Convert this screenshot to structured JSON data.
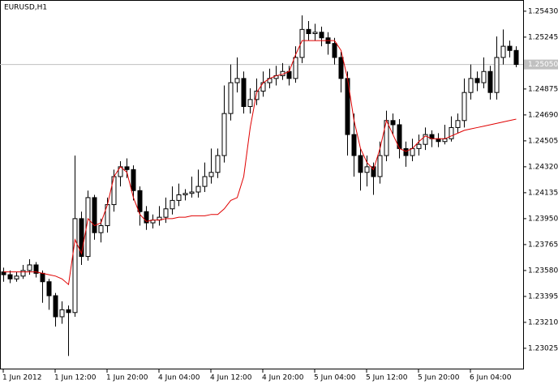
{
  "chart_data": {
    "type": "candlestick",
    "title": "EURUSD,H1",
    "candles": [
      [
        1.2357,
        1.236,
        1.235,
        1.2355
      ],
      [
        1.2355,
        1.2358,
        1.2349,
        1.2352
      ],
      [
        1.2352,
        1.2357,
        1.235,
        1.2354
      ],
      [
        1.2354,
        1.2362,
        1.2352,
        1.2358
      ],
      [
        1.2358,
        1.2366,
        1.2355,
        1.2362
      ],
      [
        1.2362,
        1.2364,
        1.2353,
        1.2356
      ],
      [
        1.2356,
        1.2358,
        1.2335,
        1.235
      ],
      [
        1.235,
        1.2352,
        1.233,
        1.234
      ],
      [
        1.234,
        1.2342,
        1.2318,
        1.2325
      ],
      [
        1.2325,
        1.2336,
        1.232,
        1.233
      ],
      [
        1.233,
        1.2333,
        1.2297,
        1.2328
      ],
      [
        1.2328,
        1.244,
        1.2325,
        1.2395
      ],
      [
        1.2395,
        1.24,
        1.2362,
        1.2368
      ],
      [
        1.2368,
        1.2415,
        1.2365,
        1.241
      ],
      [
        1.241,
        1.2412,
        1.238,
        1.2385
      ],
      [
        1.2385,
        1.2395,
        1.2378,
        1.239
      ],
      [
        1.239,
        1.241,
        1.2385,
        1.2405
      ],
      [
        1.2405,
        1.243,
        1.24,
        1.2425
      ],
      [
        1.2425,
        1.2436,
        1.2418,
        1.2432
      ],
      [
        1.2432,
        1.2438,
        1.2424,
        1.243
      ],
      [
        1.243,
        1.2433,
        1.2408,
        1.2415
      ],
      [
        1.2415,
        1.2418,
        1.239,
        1.24
      ],
      [
        1.24,
        1.2404,
        1.2387,
        1.2392
      ],
      [
        1.2392,
        1.2398,
        1.2388,
        1.2394
      ],
      [
        1.2394,
        1.2404,
        1.239,
        1.2396
      ],
      [
        1.2396,
        1.241,
        1.2392,
        1.2402
      ],
      [
        1.2402,
        1.2418,
        1.2398,
        1.2408
      ],
      [
        1.2408,
        1.242,
        1.2404,
        1.2412
      ],
      [
        1.2412,
        1.2416,
        1.2408,
        1.2413
      ],
      [
        1.2413,
        1.2425,
        1.241,
        1.2414
      ],
      [
        1.2414,
        1.243,
        1.241,
        1.2418
      ],
      [
        1.2418,
        1.2435,
        1.2414,
        1.2425
      ],
      [
        1.2425,
        1.2445,
        1.242,
        1.2428
      ],
      [
        1.2428,
        1.2445,
        1.2424,
        1.244
      ],
      [
        1.244,
        1.249,
        1.2435,
        1.247
      ],
      [
        1.247,
        1.2505,
        1.2465,
        1.2492
      ],
      [
        1.2492,
        1.251,
        1.2485,
        1.2495
      ],
      [
        1.2495,
        1.25,
        1.247,
        1.2475
      ],
      [
        1.2475,
        1.2488,
        1.247,
        1.248
      ],
      [
        1.248,
        1.2495,
        1.2476,
        1.2486
      ],
      [
        1.2486,
        1.25,
        1.2482,
        1.2492
      ],
      [
        1.2492,
        1.2502,
        1.2488,
        1.2495
      ],
      [
        1.2495,
        1.2504,
        1.249,
        1.2497
      ],
      [
        1.2497,
        1.2506,
        1.2494,
        1.25
      ],
      [
        1.25,
        1.2504,
        1.249,
        1.2495
      ],
      [
        1.2495,
        1.2518,
        1.2492,
        1.251
      ],
      [
        1.251,
        1.254,
        1.2506,
        1.253
      ],
      [
        1.253,
        1.2536,
        1.2522,
        1.2527
      ],
      [
        1.2527,
        1.2534,
        1.2522,
        1.2528
      ],
      [
        1.2528,
        1.2532,
        1.2518,
        1.2524
      ],
      [
        1.2524,
        1.2528,
        1.2512,
        1.252
      ],
      [
        1.252,
        1.2524,
        1.2505,
        1.251
      ],
      [
        1.251,
        1.2514,
        1.2485,
        1.2495
      ],
      [
        1.2495,
        1.25,
        1.244,
        1.2455
      ],
      [
        1.2455,
        1.247,
        1.2425,
        1.244
      ],
      [
        1.244,
        1.2445,
        1.2415,
        1.2428
      ],
      [
        1.2428,
        1.244,
        1.2418,
        1.2432
      ],
      [
        1.2432,
        1.2435,
        1.2412,
        1.2425
      ],
      [
        1.2425,
        1.245,
        1.242,
        1.244
      ],
      [
        1.244,
        1.2472,
        1.2436,
        1.2465
      ],
      [
        1.2465,
        1.247,
        1.2455,
        1.2462
      ],
      [
        1.2462,
        1.2466,
        1.2438,
        1.2445
      ],
      [
        1.2445,
        1.245,
        1.2432,
        1.244
      ],
      [
        1.244,
        1.2452,
        1.2436,
        1.2445
      ],
      [
        1.2445,
        1.2455,
        1.244,
        1.2448
      ],
      [
        1.2448,
        1.246,
        1.2444,
        1.2455
      ],
      [
        1.2455,
        1.2458,
        1.2446,
        1.2452
      ],
      [
        1.2452,
        1.2456,
        1.2446,
        1.245
      ],
      [
        1.245,
        1.2462,
        1.2448,
        1.2452
      ],
      [
        1.2452,
        1.2468,
        1.245,
        1.246
      ],
      [
        1.246,
        1.247,
        1.2456,
        1.2465
      ],
      [
        1.2465,
        1.2495,
        1.246,
        1.2485
      ],
      [
        1.2485,
        1.2505,
        1.248,
        1.2495
      ],
      [
        1.2495,
        1.25,
        1.2486,
        1.2492
      ],
      [
        1.2492,
        1.251,
        1.2488,
        1.25
      ],
      [
        1.25,
        1.2504,
        1.248,
        1.2485
      ],
      [
        1.2485,
        1.2525,
        1.248,
        1.251
      ],
      [
        1.251,
        1.253,
        1.2505,
        1.2518
      ],
      [
        1.2518,
        1.2522,
        1.251,
        1.2515
      ],
      [
        1.2515,
        1.2518,
        1.2503,
        1.2505
      ]
    ],
    "line": {
      "color": "#e00000",
      "values": [
        1.2357,
        1.2357,
        1.2357,
        1.2357,
        1.2357,
        1.2357,
        1.2356,
        1.2355,
        1.2354,
        1.2352,
        1.2348,
        1.238,
        1.237,
        1.2395,
        1.239,
        1.2392,
        1.2405,
        1.2425,
        1.2432,
        1.2428,
        1.241,
        1.2398,
        1.2393,
        1.2394,
        1.2394,
        1.2395,
        1.2395,
        1.2396,
        1.2396,
        1.2397,
        1.2397,
        1.2397,
        1.2398,
        1.2398,
        1.2402,
        1.2408,
        1.241,
        1.2425,
        1.246,
        1.2485,
        1.2492,
        1.2495,
        1.2497,
        1.2498,
        1.25,
        1.2512,
        1.2522,
        1.2522,
        1.2522,
        1.2522,
        1.2522,
        1.2522,
        1.2515,
        1.2495,
        1.2465,
        1.2445,
        1.2435,
        1.243,
        1.2445,
        1.2465,
        1.2455,
        1.2445,
        1.2443,
        1.2445,
        1.245,
        1.2454,
        1.2452,
        1.2452,
        1.2452,
        1.2454,
        1.2456,
        1.2458,
        1.2459,
        1.246,
        1.2461,
        1.2462,
        1.2463,
        1.2464,
        1.2465,
        1.2466
      ]
    },
    "x_tick_labels": [
      "1 Jun 2012",
      "1 Jun 12:00",
      "1 Jun 20:00",
      "4 Jun 04:00",
      "4 Jun 12:00",
      "4 Jun 20:00",
      "5 Jun 04:00",
      "5 Jun 12:00",
      "5 Jun 20:00",
      "6 Jun 04:00"
    ],
    "ylim": [
      1.2288,
      1.2551
    ],
    "yticks": [
      {
        "value": 1.2543,
        "label": "1.25430"
      },
      {
        "value": 1.25245,
        "label": "1.25245"
      },
      {
        "value": 1.24875,
        "label": "1.24875"
      },
      {
        "value": 1.2469,
        "label": "1.24690"
      },
      {
        "value": 1.24505,
        "label": "1.24505"
      },
      {
        "value": 1.2432,
        "label": "1.24320"
      },
      {
        "value": 1.24135,
        "label": "1.24135"
      },
      {
        "value": 1.2395,
        "label": "1.23950"
      },
      {
        "value": 1.23765,
        "label": "1.23765"
      },
      {
        "value": 1.2358,
        "label": "1.23580"
      },
      {
        "value": 1.23395,
        "label": "1.23395"
      },
      {
        "value": 1.2321,
        "label": "1.23210"
      },
      {
        "value": 1.23025,
        "label": "1.23025"
      }
    ],
    "current_price": {
      "value": 1.2505,
      "label": "1.25050"
    }
  }
}
